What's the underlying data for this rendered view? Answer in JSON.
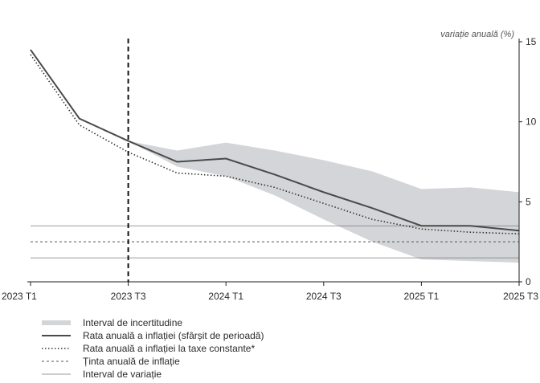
{
  "chart_data": {
    "type": "line",
    "title": "",
    "xlabel": "",
    "ylabel": "variație anuală (%)",
    "categories": [
      "2023 T1",
      "2023 T2",
      "2023 T3",
      "2023 T4",
      "2024 T1",
      "2024 T2",
      "2024 T3",
      "2024 T4",
      "2025 T1",
      "2025 T2",
      "2025 T3"
    ],
    "x_tick_labels": [
      "2023 T1",
      "2023 T3",
      "2024 T1",
      "2024 T3",
      "2025 T1",
      "2025 T3"
    ],
    "ylim": [
      0,
      15
    ],
    "y_ticks": [
      "0",
      "5",
      "10",
      "15"
    ],
    "y_axis_side": "right",
    "forecast_start": "2023 T3",
    "uncertainty_band": {
      "name": "Interval de incertitudine",
      "upper": [
        14.5,
        10.2,
        8.8,
        8.2,
        8.7,
        8.2,
        7.6,
        6.9,
        5.8,
        5.9,
        5.6
      ],
      "lower": [
        14.5,
        10.2,
        8.8,
        7.2,
        6.6,
        5.4,
        3.9,
        2.5,
        1.4,
        1.3,
        1.2
      ]
    },
    "series": [
      {
        "name": "Rata anuală a inflației (sfârșit de perioadă)",
        "style": "solid",
        "values": [
          14.5,
          10.2,
          8.8,
          7.5,
          7.7,
          6.7,
          5.6,
          4.6,
          3.5,
          3.5,
          3.2
        ]
      },
      {
        "name": "Rata anuală a inflației la taxe constante*",
        "style": "dotted",
        "values": [
          14.2,
          9.8,
          8.1,
          6.8,
          6.6,
          5.9,
          4.9,
          3.9,
          3.3,
          3.1,
          3.0
        ]
      },
      {
        "name": "Ținta anuală de inflație",
        "style": "dashed",
        "values": [
          2.5,
          2.5,
          2.5,
          2.5,
          2.5,
          2.5,
          2.5,
          2.5,
          2.5,
          2.5,
          2.5
        ]
      },
      {
        "name": "Interval de variație",
        "style": "thin",
        "bounds": [
          1.5,
          3.5
        ],
        "values": [
          3.5,
          3.5,
          3.5,
          3.5,
          3.5,
          3.5,
          3.5,
          3.5,
          3.5,
          3.5,
          3.5
        ]
      }
    ],
    "grid": false,
    "legend": "bottom-left",
    "colors": {
      "band": "#d3d5d8",
      "main": "#4a4a4a",
      "target": "#555555",
      "range": "#7a7a7a",
      "axis": "#222222"
    }
  }
}
